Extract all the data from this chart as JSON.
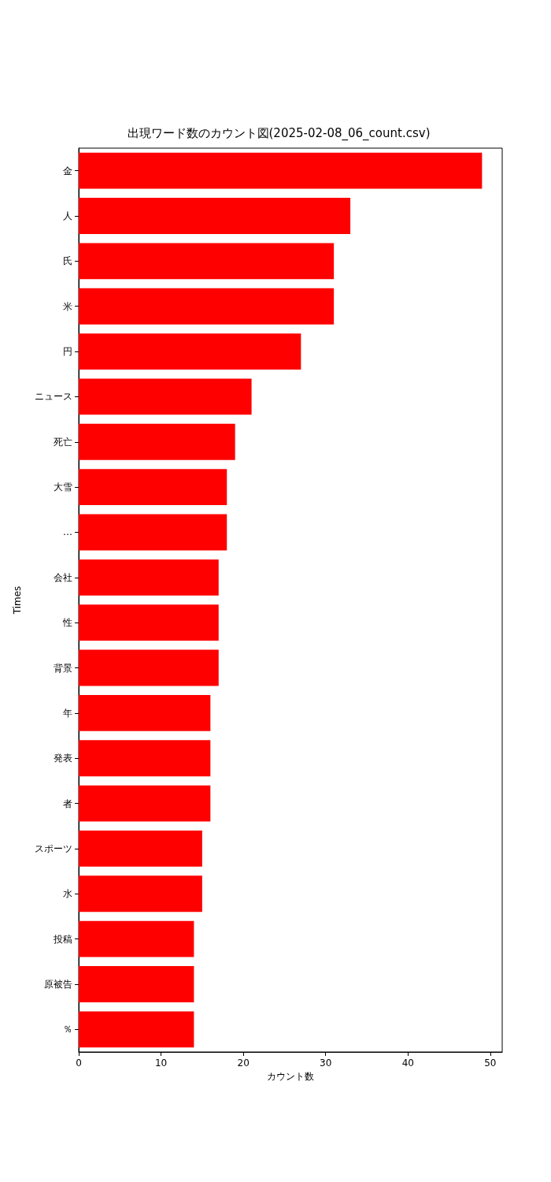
{
  "chart_data": {
    "type": "bar",
    "orientation": "horizontal",
    "title": "出現ワード数のカウント図(2025-02-08_06_count.csv)",
    "xlabel": "カウント数",
    "ylabel": "Times",
    "categories": [
      "金",
      "人",
      "氏",
      "米",
      "円",
      "ニュース",
      "死亡",
      "大雪",
      "…",
      "会社",
      "性",
      "背景",
      "年",
      "発表",
      "者",
      "スポーツ",
      "水",
      "投稿",
      "原被告",
      "％"
    ],
    "values": [
      49,
      33,
      31,
      31,
      27,
      21,
      19,
      18,
      18,
      17,
      17,
      17,
      16,
      16,
      16,
      15,
      15,
      14,
      14,
      14
    ],
    "color": "#ff0000",
    "xlim": [
      0,
      51.45
    ],
    "xticks": [
      0,
      10,
      20,
      30,
      40,
      50
    ],
    "grid": false
  }
}
